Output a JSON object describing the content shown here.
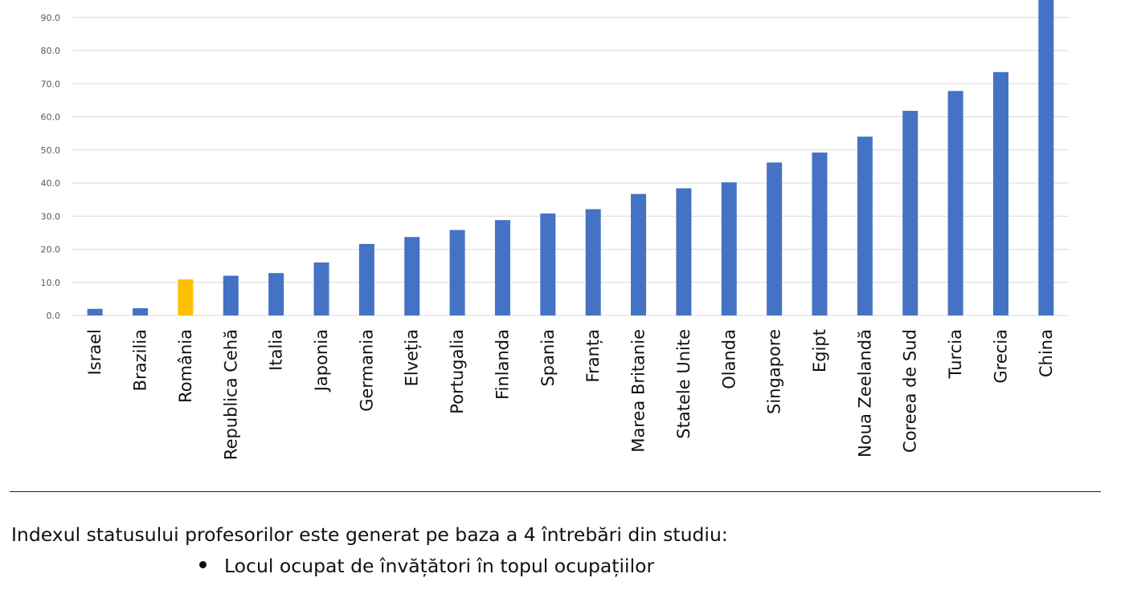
{
  "chart_data": {
    "type": "bar",
    "categories": [
      "Israel",
      "Brazilia",
      "România",
      "Republica Cehă",
      "Italia",
      "Japonia",
      "Germania",
      "Elveția",
      "Portugalia",
      "Finlanda",
      "Spania",
      "Franța",
      "Marea Britanie",
      "Statele Unite",
      "Olanda",
      "Singapore",
      "Egipt",
      "Noua Zeelandă",
      "Coreea de Sud",
      "Turcia",
      "Grecia",
      "China"
    ],
    "values": [
      2.0,
      2.2,
      10.9,
      12.0,
      12.8,
      16.0,
      21.6,
      23.7,
      25.8,
      28.8,
      30.8,
      32.1,
      36.7,
      38.4,
      40.2,
      46.2,
      49.2,
      54.0,
      61.8,
      67.8,
      73.5,
      100.0
    ],
    "highlight_index": 2,
    "colors": {
      "default": "#4472c4",
      "highlight": "#ffc000",
      "grid": "#d9d9d9"
    },
    "ylim": [
      0,
      100
    ],
    "y_ticks": [
      "0.0",
      "10.0",
      "20.0",
      "30.0",
      "40.0",
      "50.0",
      "60.0",
      "70.0",
      "80.0",
      "90.0"
    ],
    "grid": true,
    "legend": "none",
    "title": "",
    "xlabel": "",
    "ylabel": ""
  },
  "text": {
    "intro": "Indexul statusului profesorilor este generat pe baza a 4 întrebări din studiu:",
    "bullets": [
      "Locul ocupat de învățători în topul ocupațiilor"
    ]
  }
}
